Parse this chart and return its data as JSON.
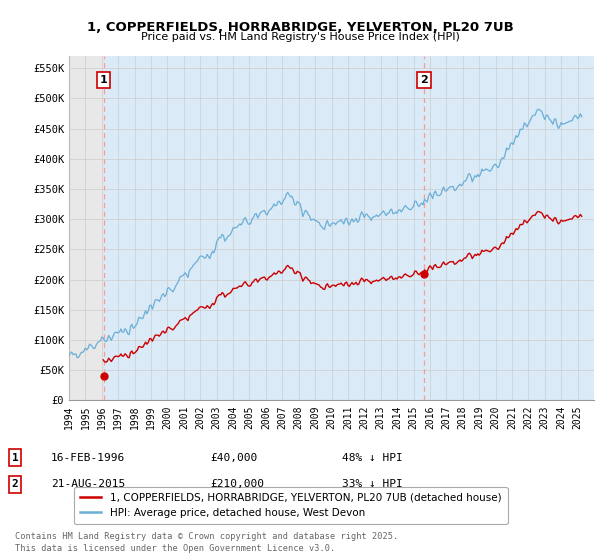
{
  "title": "1, COPPERFIELDS, HORRABRIDGE, YELVERTON, PL20 7UB",
  "subtitle": "Price paid vs. HM Land Registry's House Price Index (HPI)",
  "ylim": [
    0,
    570000
  ],
  "yticks": [
    0,
    50000,
    100000,
    150000,
    200000,
    250000,
    300000,
    350000,
    400000,
    450000,
    500000,
    550000
  ],
  "ytick_labels": [
    "£0",
    "£50K",
    "£100K",
    "£150K",
    "£200K",
    "£250K",
    "£300K",
    "£350K",
    "£400K",
    "£450K",
    "£500K",
    "£550K"
  ],
  "hpi_color": "#6baed6",
  "hpi_fill_color": "#daeaf7",
  "price_color": "#cc0000",
  "marker1_date": 1996.12,
  "marker1_price": 40000,
  "marker2_date": 2015.64,
  "marker2_price": 210000,
  "vline_color": "#ff9999",
  "legend_label_price": "1, COPPERFIELDS, HORRABRIDGE, YELVERTON, PL20 7UB (detached house)",
  "legend_label_hpi": "HPI: Average price, detached house, West Devon",
  "annotation1_label": "1",
  "annotation2_label": "2",
  "table_rows": [
    [
      "1",
      "16-FEB-1996",
      "£40,000",
      "48% ↓ HPI"
    ],
    [
      "2",
      "21-AUG-2015",
      "£210,000",
      "33% ↓ HPI"
    ]
  ],
  "footer": "Contains HM Land Registry data © Crown copyright and database right 2025.\nThis data is licensed under the Open Government Licence v3.0.",
  "background_color": "#ffffff",
  "grid_color": "#cccccc",
  "hatch_color": "#cccccc",
  "xlim_start": 1994,
  "xlim_end": 2026
}
